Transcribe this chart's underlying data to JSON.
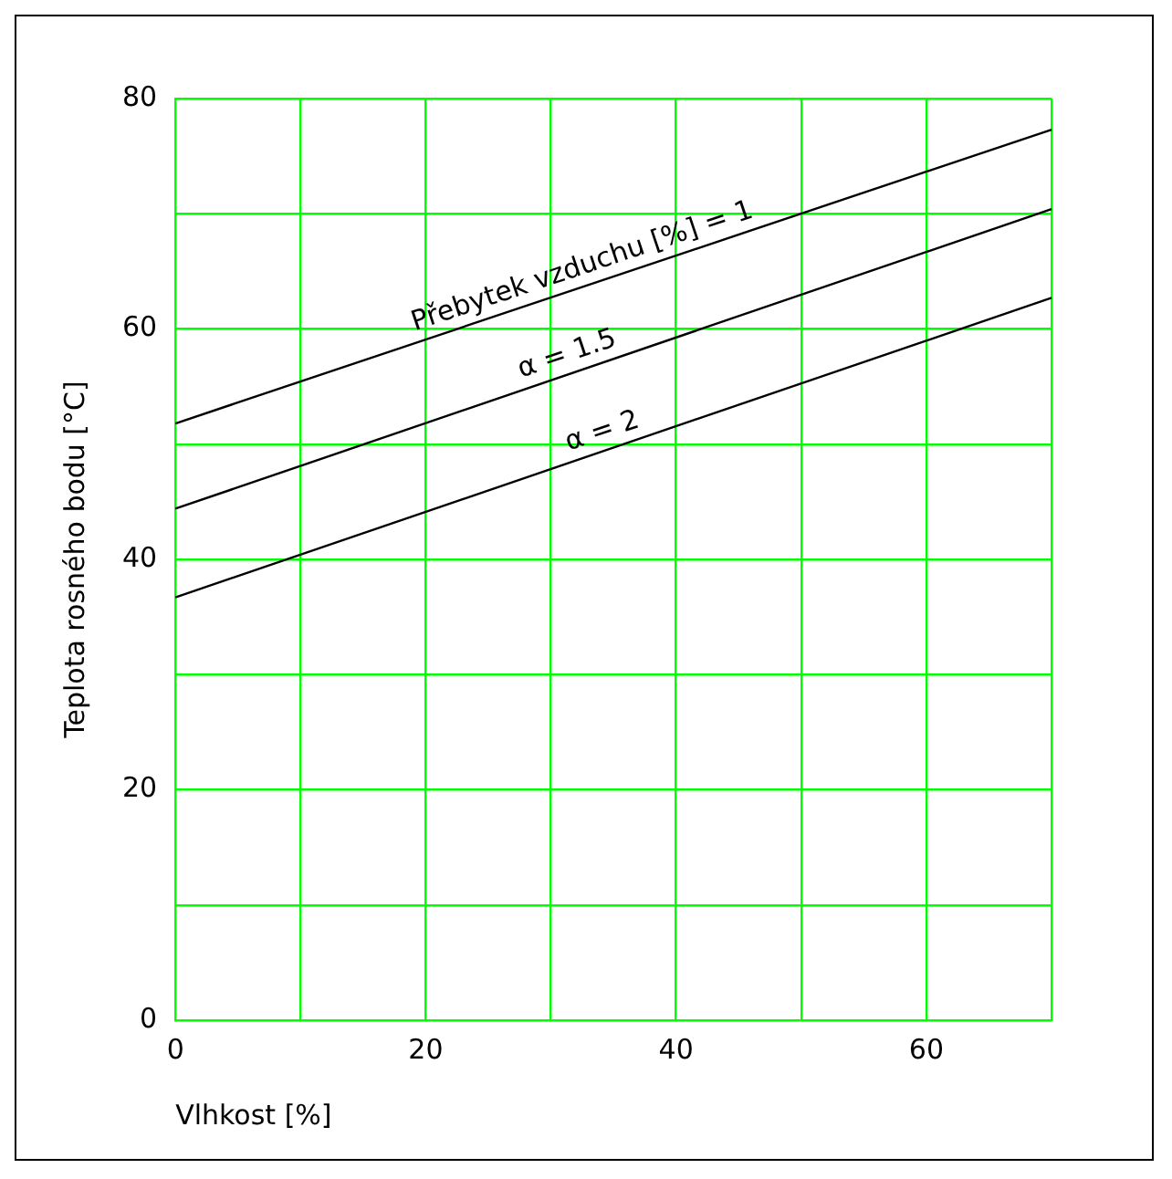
{
  "chart_data": {
    "type": "line",
    "xlabel": "Vlhkost [%]",
    "ylabel": "Teplota rosného bodu [°C]",
    "xlim": [
      0,
      70
    ],
    "ylim": [
      0,
      80
    ],
    "xticks": [
      0,
      {
        "value": 10,
        "label": null
      },
      20,
      {
        "value": 30,
        "label": null
      },
      40,
      {
        "value": 50,
        "label": null
      },
      60,
      {
        "value": 70,
        "label": null
      }
    ],
    "yticks": [
      0,
      {
        "value": 10,
        "label": null
      },
      20,
      {
        "value": 30,
        "label": null
      },
      40,
      {
        "value": 50,
        "label": null
      },
      60,
      {
        "value": 70,
        "label": null
      },
      80
    ],
    "x": [
      0,
      70
    ],
    "grid": true,
    "legend": false,
    "marker": "none",
    "line_style": "solid",
    "series": [
      {
        "color": "#000000",
        "values": [
          51.8,
          77.3
        ]
      },
      {
        "color": "#000000",
        "values": [
          44.4,
          70.4
        ]
      },
      {
        "color": "#000000",
        "values": [
          36.7,
          62.7
        ]
      }
    ],
    "annotations": [
      {
        "text": "Přebytek vzduchu [%] = 1",
        "x": 33,
        "y": 63.8
      },
      {
        "text": "α = 1.5",
        "x": 31.8,
        "y": 56.2
      },
      {
        "text": "α = 2",
        "x": 34.6,
        "y": 49.5
      }
    ]
  }
}
